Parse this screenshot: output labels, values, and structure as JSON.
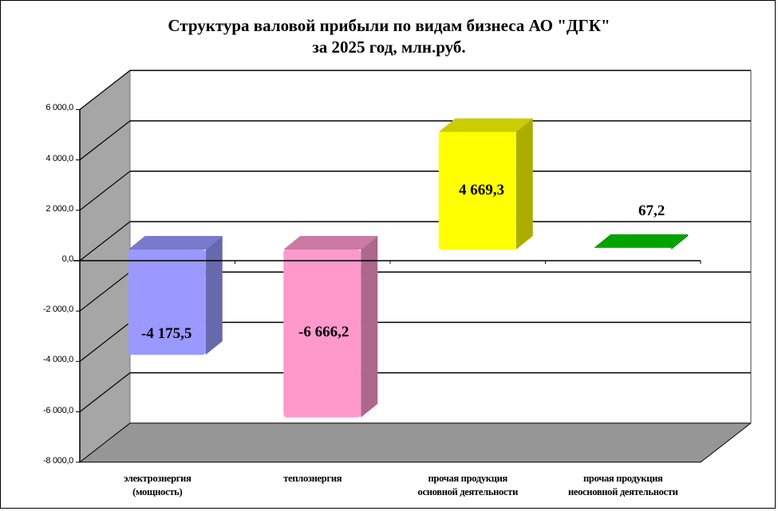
{
  "chart_data": {
    "type": "bar",
    "style": "3d-column",
    "title": "Структура валовой прибыли по видам бизнеса АО \"ДГК\" за 2025 год, млн.руб.",
    "title_lines": [
      "Структура  валовой прибыли  по видам бизнеса АО \"ДГК\"",
      "за 2025 год,  млн.руб."
    ],
    "categories": [
      "электрознергия (мощность)",
      "теплознергия",
      "прочая продукция основной деятельности",
      "прочая продукция неосновной деятельности"
    ],
    "category_lines": [
      [
        "электрознергия",
        "(мощность)"
      ],
      [
        "теплознергия"
      ],
      [
        "прочая продукция",
        "основной деятельности"
      ],
      [
        "прочая продукция",
        "неосновной деятельности"
      ]
    ],
    "values": [
      -4175.5,
      -6666.2,
      4669.3,
      67.2
    ],
    "data_labels": [
      "-4 175,5",
      "-6 666,2",
      "4 669,3",
      "67,2"
    ],
    "colors": [
      "#9999ff",
      "#ff99cc",
      "#ffff00",
      "#00cc00"
    ],
    "xlabel": "",
    "ylabel": "",
    "ylim": [
      -8000,
      6000
    ],
    "yticks": [
      6000,
      4000,
      2000,
      0,
      -2000,
      -4000,
      -6000,
      -8000
    ],
    "ytick_labels": [
      "6 000,0",
      "4 000,0",
      "2 000,0",
      "0,0",
      "-2 000,0",
      "-4 000,0",
      "-6 000,0",
      "-8 000,0"
    ],
    "grid": true,
    "legend": "none"
  },
  "colors": {
    "wall_side": "#a6a6a6",
    "floor": "#969696",
    "grid": "#000000"
  }
}
